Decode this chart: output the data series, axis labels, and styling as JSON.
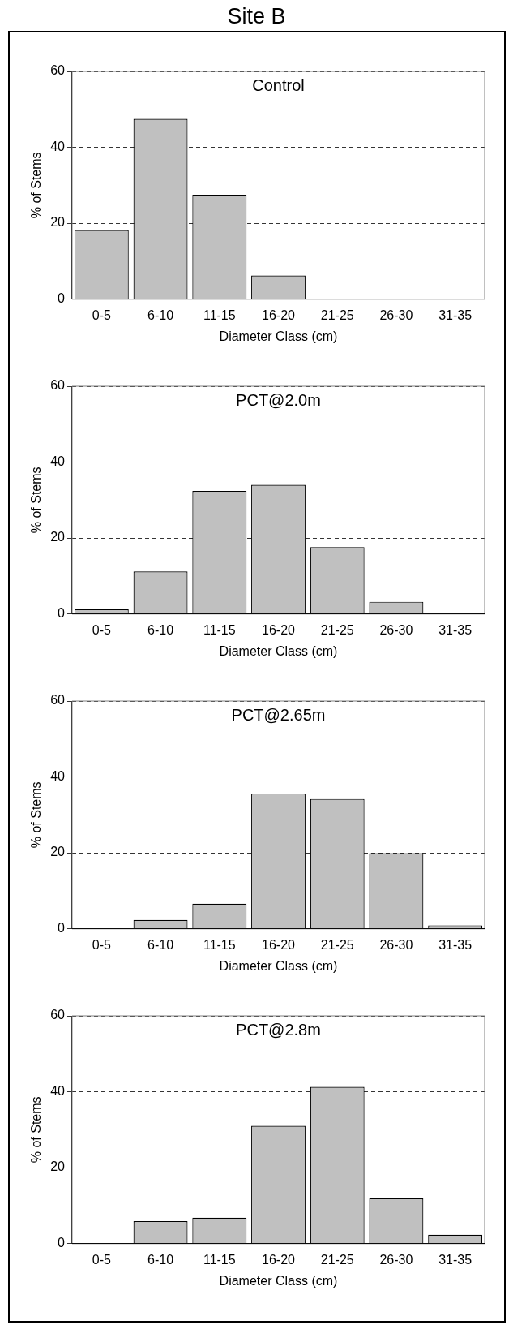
{
  "chart_data": [
    {
      "type": "bar",
      "title": "Control",
      "annotations": [
        "Site B"
      ],
      "xlabel": "Diameter Class (cm)",
      "ylabel": "% of Stems",
      "categories": [
        "0-5",
        "6-10",
        "11-15",
        "16-20",
        "21-25",
        "26-30",
        "31-35"
      ],
      "values": [
        18.2,
        47.5,
        27.5,
        6.2,
        0,
        0,
        0
      ],
      "color": "#c0c0c0",
      "ylim": [
        0,
        60
      ],
      "yticks": [
        0,
        20,
        40,
        60
      ],
      "grid": "y"
    },
    {
      "type": "bar",
      "title": "PCT@2.0m",
      "xlabel": "Diameter Class (cm)",
      "ylabel": "% of Stems",
      "categories": [
        "0-5",
        "6-10",
        "11-15",
        "16-20",
        "21-25",
        "26-30",
        "31-35"
      ],
      "values": [
        1.2,
        11.2,
        32.4,
        34,
        17.6,
        3.2,
        0
      ],
      "color": "#c0c0c0",
      "ylim": [
        0,
        60
      ],
      "yticks": [
        0,
        20,
        40,
        60
      ],
      "grid": "y"
    },
    {
      "type": "bar",
      "title": "PCT@2.65m",
      "xlabel": "Diameter Class (cm)",
      "ylabel": "% of Stems",
      "categories": [
        "0-5",
        "6-10",
        "11-15",
        "16-20",
        "21-25",
        "26-30",
        "31-35"
      ],
      "values": [
        0,
        2.3,
        6.6,
        35.6,
        34.2,
        19.9,
        0.9
      ],
      "color": "#c0c0c0",
      "ylim": [
        0,
        60
      ],
      "yticks": [
        0,
        20,
        40,
        60
      ],
      "grid": "y"
    },
    {
      "type": "bar",
      "title": "PCT@2.8m",
      "xlabel": "Diameter Class (cm)",
      "ylabel": "% of Stems",
      "categories": [
        "0-5",
        "6-10",
        "11-15",
        "16-20",
        "21-25",
        "26-30",
        "31-35"
      ],
      "values": [
        0,
        5.9,
        6.8,
        31,
        41.3,
        11.9,
        2.3
      ],
      "color": "#c0c0c0",
      "ylim": [
        0,
        60
      ],
      "yticks": [
        0,
        20,
        40,
        60
      ],
      "grid": "y"
    }
  ]
}
